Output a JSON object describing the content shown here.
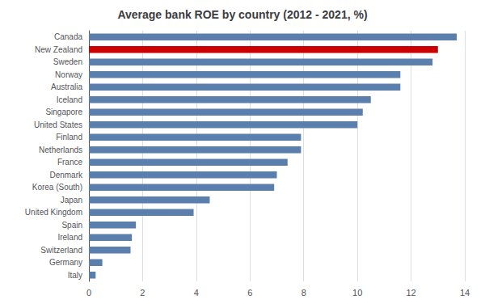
{
  "chart_data": {
    "type": "bar",
    "orientation": "horizontal",
    "title": "Average bank ROE by country (2012 - 2021, %)",
    "categories": [
      "Canada",
      "New Zealand",
      "Sweden",
      "Norway",
      "Australia",
      "Iceland",
      "Singapore",
      "United States",
      "Finland",
      "Netherlands",
      "France",
      "Denmark",
      "Korea (South)",
      "Japan",
      "United Kingdom",
      "Spain",
      "Ireland",
      "Switzerland",
      "Germany",
      "Italy"
    ],
    "values": [
      13.7,
      13.0,
      12.8,
      11.6,
      11.6,
      10.5,
      10.2,
      10.0,
      7.9,
      7.9,
      7.4,
      7.0,
      6.9,
      4.5,
      3.9,
      1.75,
      1.6,
      1.55,
      0.5,
      0.25
    ],
    "colors": [
      "#5b7fad",
      "#cc0000",
      "#5b7fad",
      "#5b7fad",
      "#5b7fad",
      "#5b7fad",
      "#5b7fad",
      "#5b7fad",
      "#5b7fad",
      "#5b7fad",
      "#5b7fad",
      "#5b7fad",
      "#5b7fad",
      "#5b7fad",
      "#5b7fad",
      "#5b7fad",
      "#5b7fad",
      "#5b7fad",
      "#5b7fad",
      "#5b7fad"
    ],
    "xlim": [
      0,
      14
    ],
    "xticks": [
      0,
      2,
      4,
      6,
      8,
      10,
      12,
      14
    ],
    "grid": true
  }
}
